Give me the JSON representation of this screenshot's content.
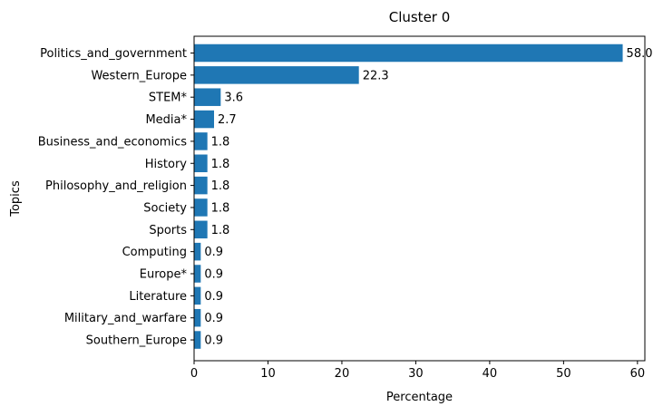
{
  "chart_data": {
    "type": "bar",
    "orientation": "horizontal",
    "title": "Cluster 0",
    "xlabel": "Percentage",
    "ylabel": "Topics",
    "xlim": [
      0,
      61
    ],
    "xticks": [
      0,
      10,
      20,
      30,
      40,
      50,
      60
    ],
    "grid": false,
    "bar_color": "#1f77b4",
    "categories": [
      "Politics_and_government",
      "Western_Europe",
      "STEM*",
      "Media*",
      "Business_and_economics",
      "History",
      "Philosophy_and_religion",
      "Society",
      "Sports",
      "Computing",
      "Europe*",
      "Literature",
      "Military_and_warfare",
      "Southern_Europe"
    ],
    "values": [
      58.0,
      22.3,
      3.6,
      2.7,
      1.8,
      1.8,
      1.8,
      1.8,
      1.8,
      0.9,
      0.9,
      0.9,
      0.9,
      0.9
    ],
    "data_labels": [
      "58.0",
      "22.3",
      "3.6",
      "2.7",
      "1.8",
      "1.8",
      "1.8",
      "1.8",
      "1.8",
      "0.9",
      "0.9",
      "0.9",
      "0.9",
      "0.9"
    ]
  }
}
